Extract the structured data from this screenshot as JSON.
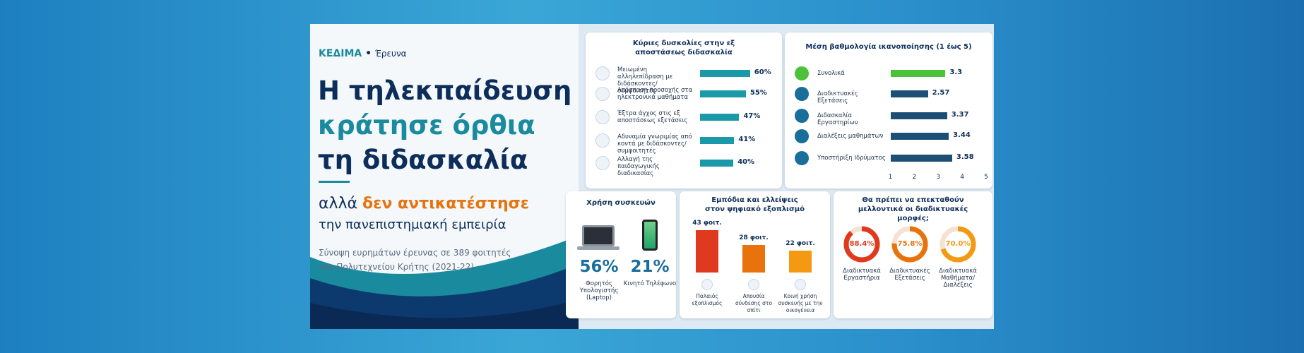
{
  "header": {
    "brand": "ΚΕΔΙΜΑ",
    "section": "Έρευνα",
    "title_lines": [
      "Η τηλεκπαίδευση",
      "κράτησε όρθια",
      "τη διδασκαλία"
    ],
    "subtitle_pre": "αλλά",
    "subtitle_em": "δεν αντικατέστησε",
    "subtitle_line2": "την πανεπιστημιακή εμπειρία",
    "note_lines": [
      "Σύνοψη ευρημάτων έρευνας σε 389 φοιτητές",
      "του Πολυτεχνείου Κρήτης (2021-22)"
    ]
  },
  "chart_data": [
    {
      "type": "hbar",
      "title": "Κύριες δυσκολίες στην εξ αποστάσεως διδασκαλία",
      "categories": [
        "Μειωμένη αλληλεπίδραση με διδάσκοντες/συμφοιτητές",
        "Απόσπαση προσοχής στα ηλεκτρονικά μαθήματα",
        "Έξτρα άγχος στις εξ αποστάσεως εξετάσεις",
        "Αδυναμία γνωριμίας από κοντά με διδάσκοντες/συμφοιτητές",
        "Αλλαγή της παιδαγωγικής διαδικασίας"
      ],
      "values": [
        60,
        55,
        47,
        41,
        40
      ],
      "value_labels": [
        "60%",
        "55%",
        "47%",
        "41%",
        "40%"
      ],
      "color": "#1a9aa8"
    },
    {
      "type": "hbar_axis",
      "title": "Μέση βαθμολογία ικανοποίησης (1 έως 5)",
      "categories": [
        "Συνολικά",
        "Διαδικτυακές Εξετάσεις",
        "Διδασκαλία Εργαστηρίων",
        "Διαλέξεις μαθημάτων",
        "Υποστήριξη Ιδρύματος"
      ],
      "values": [
        3.3,
        2.57,
        3.37,
        3.44,
        3.58
      ],
      "colors": [
        "#4cc23a",
        "#1d4e73",
        "#1d4e73",
        "#1d4e73",
        "#1d4e73"
      ],
      "xlim": [
        1,
        5
      ],
      "xticks": [
        1,
        2,
        3,
        4,
        5
      ]
    },
    {
      "type": "stat",
      "title": "Χρήση συσκευών",
      "categories": [
        "Φορητός Υπολογιστής (Laptop)",
        "Κινητό Τηλέφωνο"
      ],
      "values": [
        56,
        21
      ],
      "value_labels": [
        "56%",
        "21%"
      ],
      "color": "#1a6e9a"
    },
    {
      "type": "column",
      "title": "Εμπόδια και ελλείψεις στον ψηφιακό εξοπλισμό",
      "categories": [
        "Παλαιός εξοπλισμός",
        "Απουσία σύνδεσης στο σπίτι",
        "Κοινή χρήση συσκευής με την οικογένεια"
      ],
      "values": [
        43,
        28,
        22
      ],
      "value_labels": [
        "43 φοιτ.",
        "28 φοιτ.",
        "22 φοιτ."
      ],
      "colors": [
        "#e03a1e",
        "#e8720c",
        "#f39a12"
      ]
    },
    {
      "type": "donut",
      "title": "Θα πρέπει να επεκταθούν μελλοντικά οι διαδικτυακές μορφές;",
      "categories": [
        "Διαδικτυακά Εργαστήρια",
        "Διαδικτυακές Εξετάσεις",
        "Διαδικτυακά Μαθήματα/ Διαλέξεις"
      ],
      "values": [
        88.4,
        75.8,
        70.0
      ],
      "value_labels": [
        "88.4%",
        "75.8%",
        "70.0%"
      ],
      "colors": [
        "#e03a1e",
        "#e8720c",
        "#f39a12"
      ]
    }
  ]
}
